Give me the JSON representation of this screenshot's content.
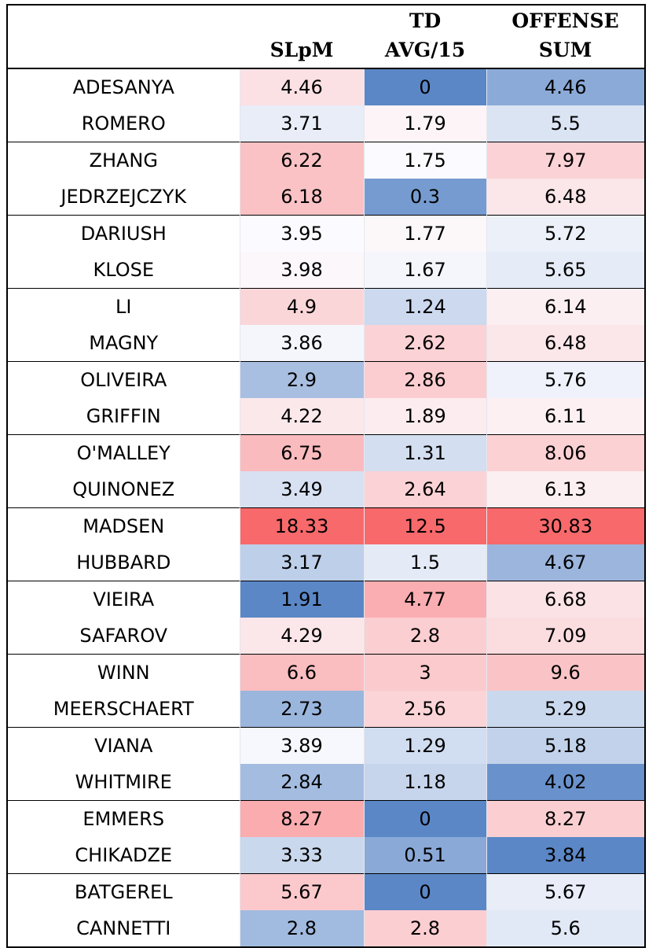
{
  "chart_data": {
    "type": "table",
    "columns": [
      {
        "key": "name",
        "lines": [
          ""
        ]
      },
      {
        "key": "slpm",
        "lines": [
          "SLpM"
        ]
      },
      {
        "key": "td_avg_15",
        "lines": [
          "TD",
          "AVG/15"
        ]
      },
      {
        "key": "offense_sum",
        "lines": [
          "OFFENSE",
          "SUM"
        ]
      }
    ],
    "rows": [
      {
        "name": "ADESANYA",
        "slpm": "4.46",
        "td_avg_15": "0",
        "offense_sum": "4.46"
      },
      {
        "name": "ROMERO",
        "slpm": "3.71",
        "td_avg_15": "1.79",
        "offense_sum": "5.5"
      },
      {
        "name": "ZHANG",
        "slpm": "6.22",
        "td_avg_15": "1.75",
        "offense_sum": "7.97"
      },
      {
        "name": "JEDRZEJCZYK",
        "slpm": "6.18",
        "td_avg_15": "0.3",
        "offense_sum": "6.48"
      },
      {
        "name": "DARIUSH",
        "slpm": "3.95",
        "td_avg_15": "1.77",
        "offense_sum": "5.72"
      },
      {
        "name": "KLOSE",
        "slpm": "3.98",
        "td_avg_15": "1.67",
        "offense_sum": "5.65"
      },
      {
        "name": "LI",
        "slpm": "4.9",
        "td_avg_15": "1.24",
        "offense_sum": "6.14"
      },
      {
        "name": "MAGNY",
        "slpm": "3.86",
        "td_avg_15": "2.62",
        "offense_sum": "6.48"
      },
      {
        "name": "OLIVEIRA",
        "slpm": "2.9",
        "td_avg_15": "2.86",
        "offense_sum": "5.76"
      },
      {
        "name": "GRIFFIN",
        "slpm": "4.22",
        "td_avg_15": "1.89",
        "offense_sum": "6.11"
      },
      {
        "name": "O'MALLEY",
        "slpm": "6.75",
        "td_avg_15": "1.31",
        "offense_sum": "8.06"
      },
      {
        "name": "QUINONEZ",
        "slpm": "3.49",
        "td_avg_15": "2.64",
        "offense_sum": "6.13"
      },
      {
        "name": "MADSEN",
        "slpm": "18.33",
        "td_avg_15": "12.5",
        "offense_sum": "30.83"
      },
      {
        "name": "HUBBARD",
        "slpm": "3.17",
        "td_avg_15": "1.5",
        "offense_sum": "4.67"
      },
      {
        "name": "VIEIRA",
        "slpm": "1.91",
        "td_avg_15": "4.77",
        "offense_sum": "6.68"
      },
      {
        "name": "SAFAROV",
        "slpm": "4.29",
        "td_avg_15": "2.8",
        "offense_sum": "7.09"
      },
      {
        "name": "WINN",
        "slpm": "6.6",
        "td_avg_15": "3",
        "offense_sum": "9.6"
      },
      {
        "name": "MEERSCHAERT",
        "slpm": "2.73",
        "td_avg_15": "2.56",
        "offense_sum": "5.29"
      },
      {
        "name": "VIANA",
        "slpm": "3.89",
        "td_avg_15": "1.29",
        "offense_sum": "5.18"
      },
      {
        "name": "WHITMIRE",
        "slpm": "2.84",
        "td_avg_15": "1.18",
        "offense_sum": "4.02"
      },
      {
        "name": "EMMERS",
        "slpm": "8.27",
        "td_avg_15": "0",
        "offense_sum": "8.27"
      },
      {
        "name": "CHIKADZE",
        "slpm": "3.33",
        "td_avg_15": "0.51",
        "offense_sum": "3.84"
      },
      {
        "name": "BATGEREL",
        "slpm": "5.67",
        "td_avg_15": "0",
        "offense_sum": "5.67"
      },
      {
        "name": "CANNETTI",
        "slpm": "2.8",
        "td_avg_15": "2.8",
        "offense_sum": "5.6"
      }
    ],
    "row_pairs": 2,
    "color_scale": {
      "low": "#5b87c6",
      "mid": "#fcfcff",
      "high": "#f8696b"
    }
  }
}
